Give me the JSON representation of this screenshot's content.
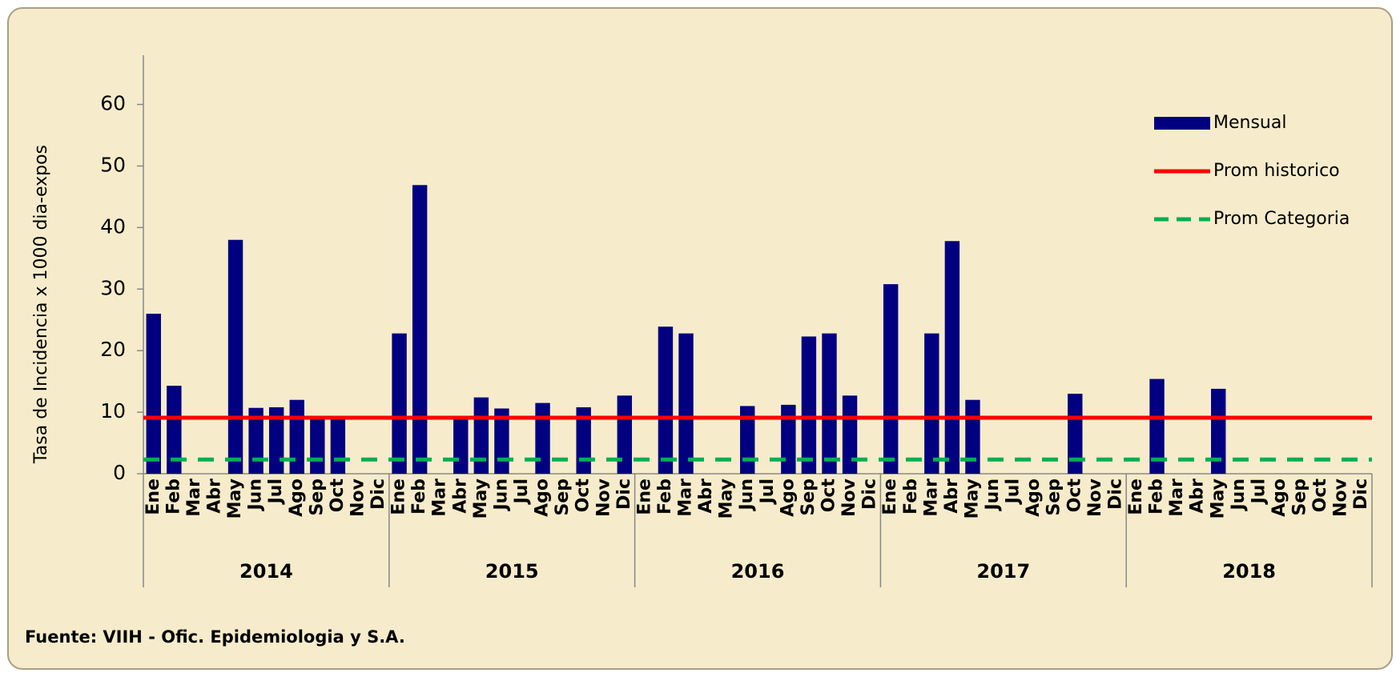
{
  "chart_data": {
    "type": "bar",
    "y_label": "Tasa de Incidencia x 1000 dia-expos",
    "source": "Fuente: VIIH - Ofic. Epidemiologia y S.A.",
    "categories": [
      "Ene",
      "Feb",
      "Mar",
      "Abr",
      "May",
      "Jun",
      "Jul",
      "Ago",
      "Sep",
      "Oct",
      "Nov",
      "Dic",
      "Ene",
      "Feb",
      "Mar",
      "Abr",
      "May",
      "Jun",
      "Jul",
      "Ago",
      "Sep",
      "Oct",
      "Nov",
      "Dic",
      "Ene",
      "Feb",
      "Mar",
      "Abr",
      "May",
      "Jun",
      "Jul",
      "Ago",
      "Sep",
      "Oct",
      "Nov",
      "Dic",
      "Ene",
      "Feb",
      "Mar",
      "Abr",
      "May",
      "Jun",
      "Jul",
      "Ago",
      "Sep",
      "Oct",
      "Nov",
      "Dic",
      "Ene",
      "Feb",
      "Mar",
      "Abr",
      "May",
      "Jun",
      "Jul",
      "Ago",
      "Sep",
      "Oct",
      "Nov",
      "Dic"
    ],
    "year_groups": [
      "2014",
      "2015",
      "2016",
      "2017",
      "2018"
    ],
    "series": [
      {
        "name": "Mensual",
        "color": "#000080",
        "values": [
          26,
          14.3,
          null,
          null,
          38,
          10.7,
          10.8,
          12,
          9.1,
          9.2,
          null,
          null,
          22.8,
          46.9,
          null,
          9.1,
          12.4,
          10.6,
          null,
          11.5,
          null,
          10.8,
          null,
          12.7,
          null,
          23.9,
          22.8,
          null,
          null,
          11,
          null,
          11.2,
          22.3,
          22.8,
          12.7,
          null,
          30.8,
          null,
          22.8,
          37.8,
          12,
          null,
          null,
          null,
          null,
          13,
          null,
          null,
          null,
          15.4,
          null,
          null,
          13.8,
          null,
          null,
          null,
          null,
          null,
          null,
          null
        ]
      }
    ],
    "reference_lines": [
      {
        "name": "Prom historico",
        "color": "#ff0000",
        "value": 9.1,
        "dashed": false
      },
      {
        "name": "Prom Categoria",
        "color": "#00b050",
        "value": 2.3,
        "dashed": true
      }
    ],
    "ylim": [
      0,
      68
    ],
    "yticks": [
      0,
      10,
      20,
      30,
      40,
      50,
      60
    ]
  }
}
